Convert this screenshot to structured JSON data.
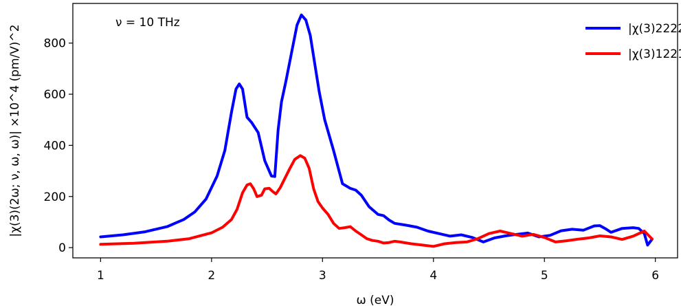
{
  "chart_data": {
    "type": "line",
    "annotation": "ν = 10 THz",
    "xlabel": "ω (eV)",
    "ylabel": "|χ(3)(2ω; ν, ω, ω)| ×10^4 (pm/V)^2",
    "xlim": [
      0.75,
      6.2
    ],
    "ylim": [
      -40,
      955
    ],
    "xticks": [
      1,
      2,
      3,
      4,
      5,
      6
    ],
    "yticks": [
      0,
      200,
      400,
      600,
      800
    ],
    "grid": false,
    "legend_position": "top-right",
    "series": [
      {
        "name": "|χ(3)2222|",
        "color": "#0000ff",
        "x": [
          1.0,
          1.2,
          1.4,
          1.6,
          1.75,
          1.85,
          1.95,
          2.05,
          2.12,
          2.18,
          2.22,
          2.25,
          2.28,
          2.32,
          2.36,
          2.42,
          2.48,
          2.54,
          2.57,
          2.6,
          2.63,
          2.67,
          2.72,
          2.77,
          2.81,
          2.85,
          2.89,
          2.93,
          2.97,
          3.02,
          3.1,
          3.18,
          3.25,
          3.3,
          3.35,
          3.42,
          3.5,
          3.55,
          3.6,
          3.65,
          3.75,
          3.85,
          3.95,
          4.05,
          4.15,
          4.25,
          4.35,
          4.45,
          4.55,
          4.65,
          4.75,
          4.85,
          4.95,
          5.05,
          5.15,
          5.25,
          5.35,
          5.45,
          5.5,
          5.55,
          5.6,
          5.7,
          5.8,
          5.85,
          5.9,
          5.93,
          5.97
        ],
        "y": [
          42,
          50,
          62,
          82,
          110,
          140,
          190,
          280,
          380,
          530,
          620,
          640,
          620,
          510,
          490,
          450,
          340,
          280,
          278,
          460,
          570,
          650,
          760,
          870,
          910,
          890,
          830,
          720,
          610,
          500,
          380,
          250,
          232,
          225,
          205,
          160,
          130,
          125,
          108,
          95,
          88,
          80,
          65,
          55,
          45,
          50,
          40,
          22,
          38,
          46,
          52,
          57,
          42,
          48,
          66,
          72,
          68,
          85,
          86,
          74,
          60,
          75,
          78,
          75,
          55,
          10,
          33
        ]
      },
      {
        "name": "|χ(3)1221|",
        "color": "#ff0000",
        "x": [
          1.0,
          1.3,
          1.6,
          1.8,
          2.0,
          2.1,
          2.18,
          2.23,
          2.28,
          2.32,
          2.35,
          2.38,
          2.41,
          2.45,
          2.48,
          2.52,
          2.55,
          2.58,
          2.62,
          2.66,
          2.7,
          2.75,
          2.8,
          2.84,
          2.88,
          2.92,
          2.96,
          3.0,
          3.05,
          3.1,
          3.15,
          3.2,
          3.25,
          3.3,
          3.35,
          3.4,
          3.45,
          3.5,
          3.55,
          3.6,
          3.65,
          3.7,
          3.8,
          3.9,
          4.0,
          4.1,
          4.2,
          4.3,
          4.4,
          4.5,
          4.6,
          4.7,
          4.8,
          4.9,
          5.0,
          5.1,
          5.2,
          5.3,
          5.4,
          5.5,
          5.6,
          5.7,
          5.8,
          5.9,
          5.97
        ],
        "y": [
          13,
          17,
          25,
          35,
          58,
          80,
          110,
          150,
          215,
          245,
          250,
          230,
          200,
          205,
          230,
          232,
          220,
          210,
          235,
          270,
          305,
          345,
          360,
          350,
          310,
          230,
          180,
          155,
          130,
          95,
          75,
          78,
          82,
          65,
          50,
          35,
          28,
          25,
          18,
          20,
          25,
          22,
          15,
          10,
          5,
          15,
          20,
          22,
          35,
          55,
          65,
          55,
          45,
          52,
          40,
          22,
          27,
          33,
          38,
          46,
          42,
          32,
          45,
          65,
          34
        ]
      }
    ]
  }
}
